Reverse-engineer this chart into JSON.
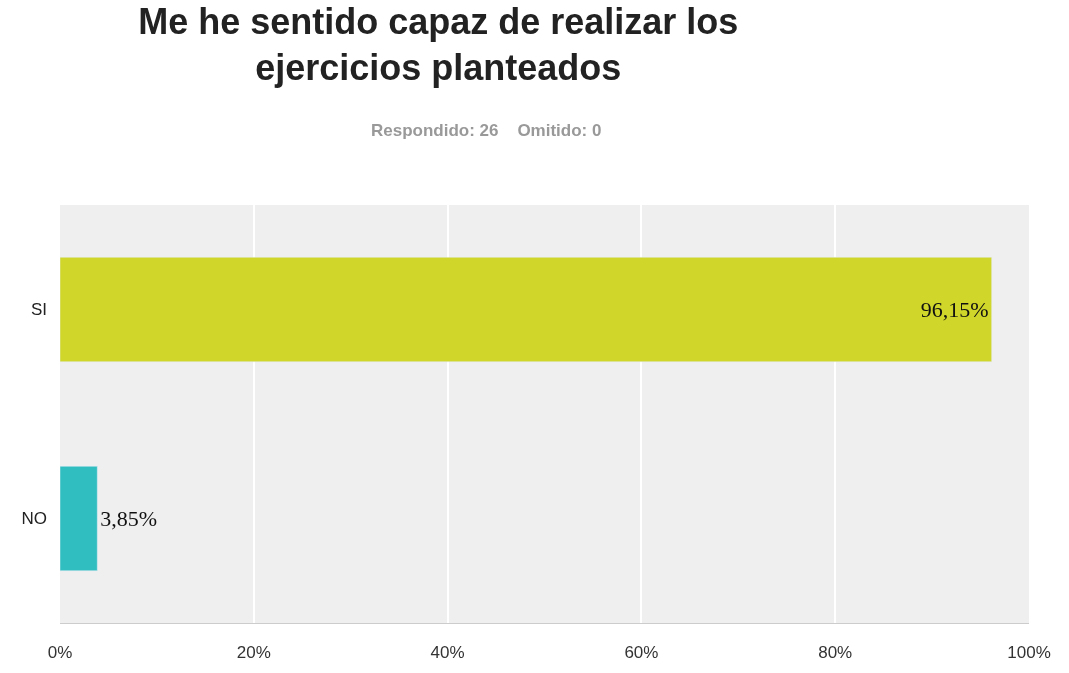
{
  "chart_data": {
    "type": "bar",
    "orientation": "horizontal",
    "title": "Me he sentido capaz de realizar los\nejercicios planteados",
    "subtitle": "Respondido: 26    Omitido: 0",
    "categories": [
      "SI",
      "NO"
    ],
    "values": [
      96.15,
      3.85
    ],
    "colors": [
      "#d0d62a",
      "#30bec0"
    ],
    "value_labels": [
      "96,15%",
      "3,85%"
    ],
    "xlim": [
      0,
      100
    ],
    "xticks": [
      {
        "value": 0,
        "label": "0%"
      },
      {
        "value": 20,
        "label": "20%"
      },
      {
        "value": 40,
        "label": "40%"
      },
      {
        "value": 60,
        "label": "60%"
      },
      {
        "value": 80,
        "label": "80%"
      },
      {
        "value": 100,
        "label": "100%"
      }
    ],
    "grid": "x",
    "legend": false
  }
}
